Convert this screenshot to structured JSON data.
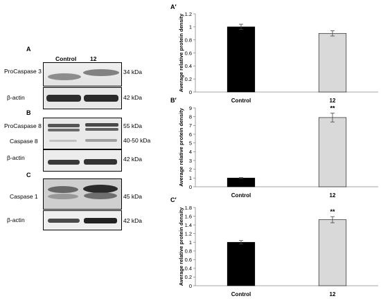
{
  "left_panel": {
    "col_labels": [
      "Control",
      "12"
    ],
    "blots": [
      {
        "letter": "A",
        "label": "ProCaspase 3",
        "size": "34 kDa",
        "loading_label": "β-actin",
        "loading_size": "42 kDa"
      },
      {
        "letter": "B",
        "labels": [
          "ProCaspase 8",
          "Caspase 8"
        ],
        "sizes": [
          "55 kDa",
          "40-50 kDa"
        ],
        "loading_label": "β-actin",
        "loading_size": "42 kDa"
      },
      {
        "letter": "C",
        "label": "Caspase 1",
        "size": "45 kDa",
        "loading_label": "β-actin",
        "loading_size": "42 kDa"
      }
    ]
  },
  "colors": {
    "control_bar": "#000000",
    "treated_bar": "#d9d9d9",
    "axis": "#888888"
  },
  "chart_data": [
    {
      "panel": "A′",
      "type": "bar",
      "categories": [
        "Control",
        "12"
      ],
      "values": [
        1.0,
        0.9
      ],
      "errors": [
        0.04,
        0.04
      ],
      "significance": [
        "",
        ""
      ],
      "ylabel": "Average relative protein density",
      "ylim": [
        0,
        1.2
      ],
      "yticks": [
        "0",
        "0.2",
        "0.4",
        "0.6",
        "0.8",
        "1",
        "1.2"
      ]
    },
    {
      "panel": "B′",
      "type": "bar",
      "categories": [
        "Control",
        "12"
      ],
      "values": [
        1.0,
        7.9
      ],
      "errors": [
        0.05,
        0.5
      ],
      "significance": [
        "",
        "**"
      ],
      "ylabel": "Average relative protein density",
      "ylim": [
        0,
        9
      ],
      "yticks": [
        "0",
        "1",
        "2",
        "3",
        "4",
        "5",
        "6",
        "7",
        "8",
        "9"
      ]
    },
    {
      "panel": "C′",
      "type": "bar",
      "categories": [
        "Control",
        "12"
      ],
      "values": [
        1.0,
        1.52
      ],
      "errors": [
        0.04,
        0.07
      ],
      "significance": [
        "",
        "**"
      ],
      "ylabel": "Average relative protein density",
      "ylim": [
        0,
        1.8
      ],
      "yticks": [
        "0",
        "0.2",
        "0.4",
        "0.6",
        "0.8",
        "1",
        "1.2",
        "1.4",
        "1.6",
        "1.8"
      ]
    }
  ]
}
